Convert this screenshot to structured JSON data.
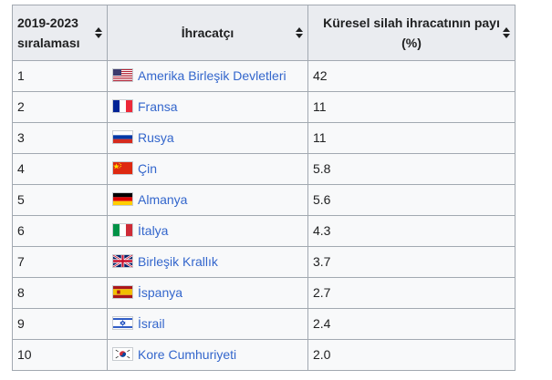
{
  "table": {
    "headers": [
      {
        "line1": "2019-2023",
        "line2": "sıralaması"
      },
      {
        "line1": "İhracatçı",
        "line2": ""
      },
      {
        "line1": "Küresel silah ihracatının payı",
        "line2": "(%)"
      }
    ],
    "rows": [
      {
        "rank": "1",
        "country": "Amerika Birleşik Devletleri",
        "share": "42",
        "flag": "usa-flag-icon"
      },
      {
        "rank": "2",
        "country": "Fransa",
        "share": "11",
        "flag": "france-flag-icon"
      },
      {
        "rank": "3",
        "country": "Rusya",
        "share": "11",
        "flag": "russia-flag-icon"
      },
      {
        "rank": "4",
        "country": "Çin",
        "share": "5.8",
        "flag": "china-flag-icon"
      },
      {
        "rank": "5",
        "country": "Almanya",
        "share": "5.6",
        "flag": "germany-flag-icon"
      },
      {
        "rank": "6",
        "country": "İtalya",
        "share": "4.3",
        "flag": "italy-flag-icon"
      },
      {
        "rank": "7",
        "country": "Birleşik Krallık",
        "share": "3.7",
        "flag": "uk-flag-icon"
      },
      {
        "rank": "8",
        "country": "İspanya",
        "share": "2.7",
        "flag": "spain-flag-icon"
      },
      {
        "rank": "9",
        "country": "İsrail",
        "share": "2.4",
        "flag": "israel-flag-icon"
      },
      {
        "rank": "10",
        "country": "Kore Cumhuriyeti",
        "share": "2.0",
        "flag": "south-korea-flag-icon"
      }
    ]
  },
  "colors": {
    "header_bg": "#eaecf0",
    "cell_bg": "#f8f9fa",
    "border": "#a2a9b1",
    "link": "#3366cc"
  }
}
